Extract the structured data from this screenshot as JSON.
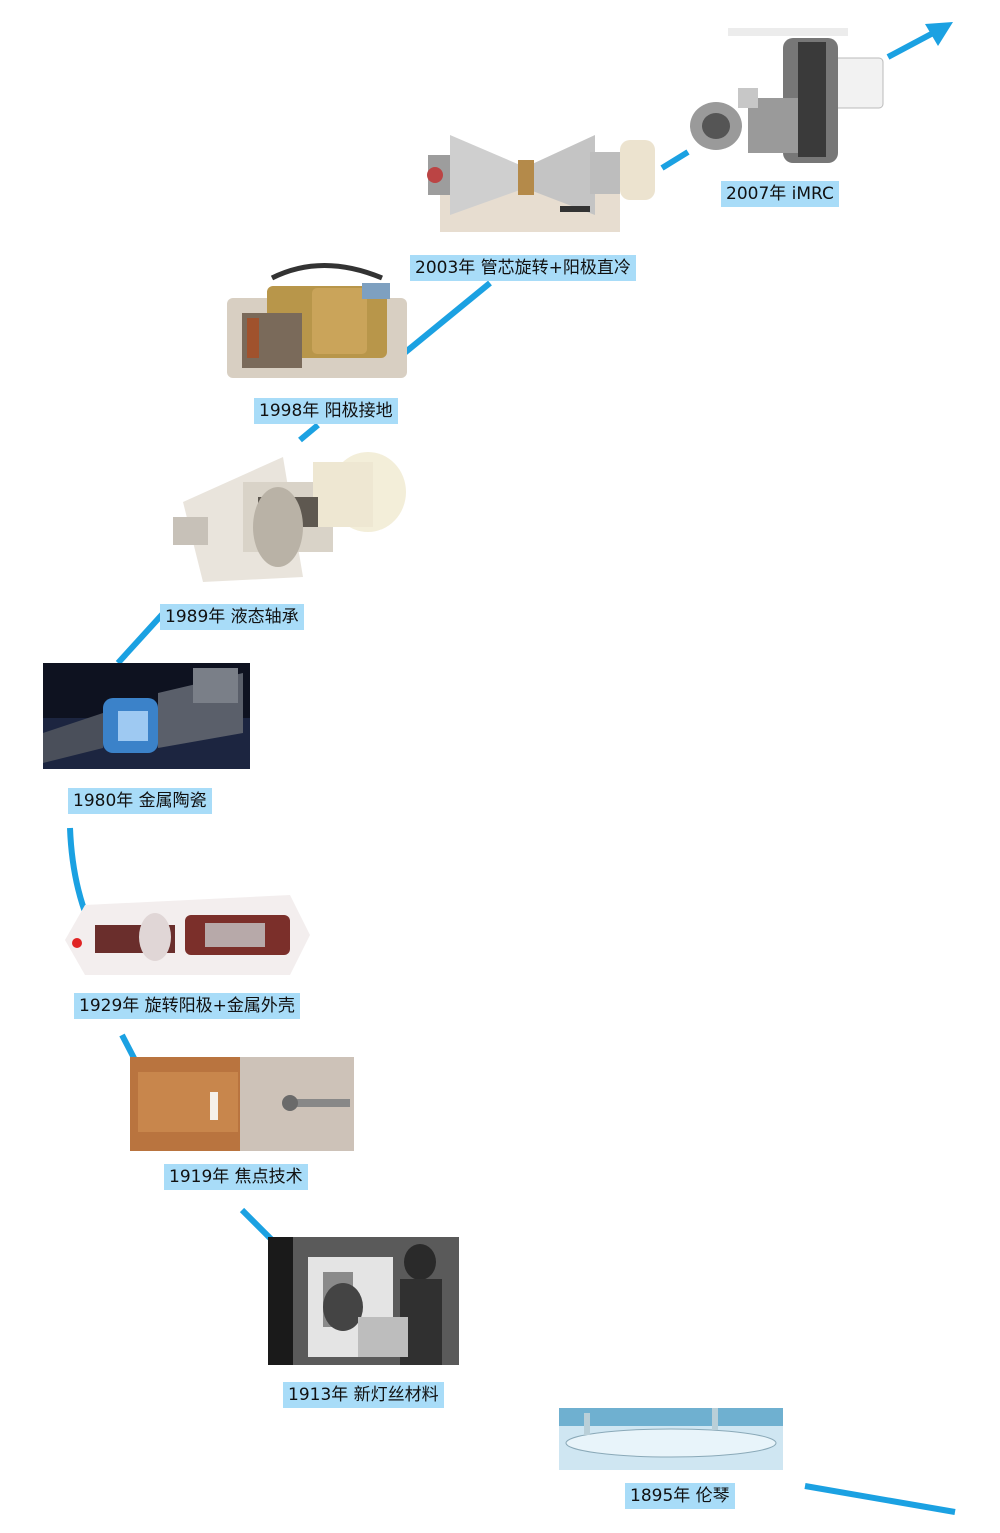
{
  "milestones": [
    {
      "id": "1895",
      "label": "1895年 伦琴",
      "image": "glass-x-ray-tube-photo"
    },
    {
      "id": "1913",
      "label": "1913年 新灯丝材料",
      "image": "laboratory-scientist-photo"
    },
    {
      "id": "1919",
      "label": "1919年 焦点技术",
      "image": "copper-anode-photo"
    },
    {
      "id": "1929",
      "label": "1929年 旋转阳极+金属外壳",
      "image": "rotating-anode-tube-photo"
    },
    {
      "id": "1980",
      "label": "1980年 金属陶瓷",
      "image": "metal-ceramic-tube-render"
    },
    {
      "id": "1989",
      "label": "1989年 液态轴承",
      "image": "liquid-bearing-tube-cutaway"
    },
    {
      "id": "1998",
      "label": "1998年 阳极接地",
      "image": "grounded-anode-tube-photo"
    },
    {
      "id": "2003",
      "label": "2003年 管芯旋转+阳极直冷",
      "image": "rotating-envelope-tube-photo"
    },
    {
      "id": "2007",
      "label": "2007年 iMRC",
      "image": "imrc-tube-photo"
    }
  ],
  "colors": {
    "path": "#1ba1e2",
    "label_background": "#a8dcf8",
    "label_text": "#111111"
  },
  "icons": {
    "path_end": "arrow-head-icon"
  }
}
